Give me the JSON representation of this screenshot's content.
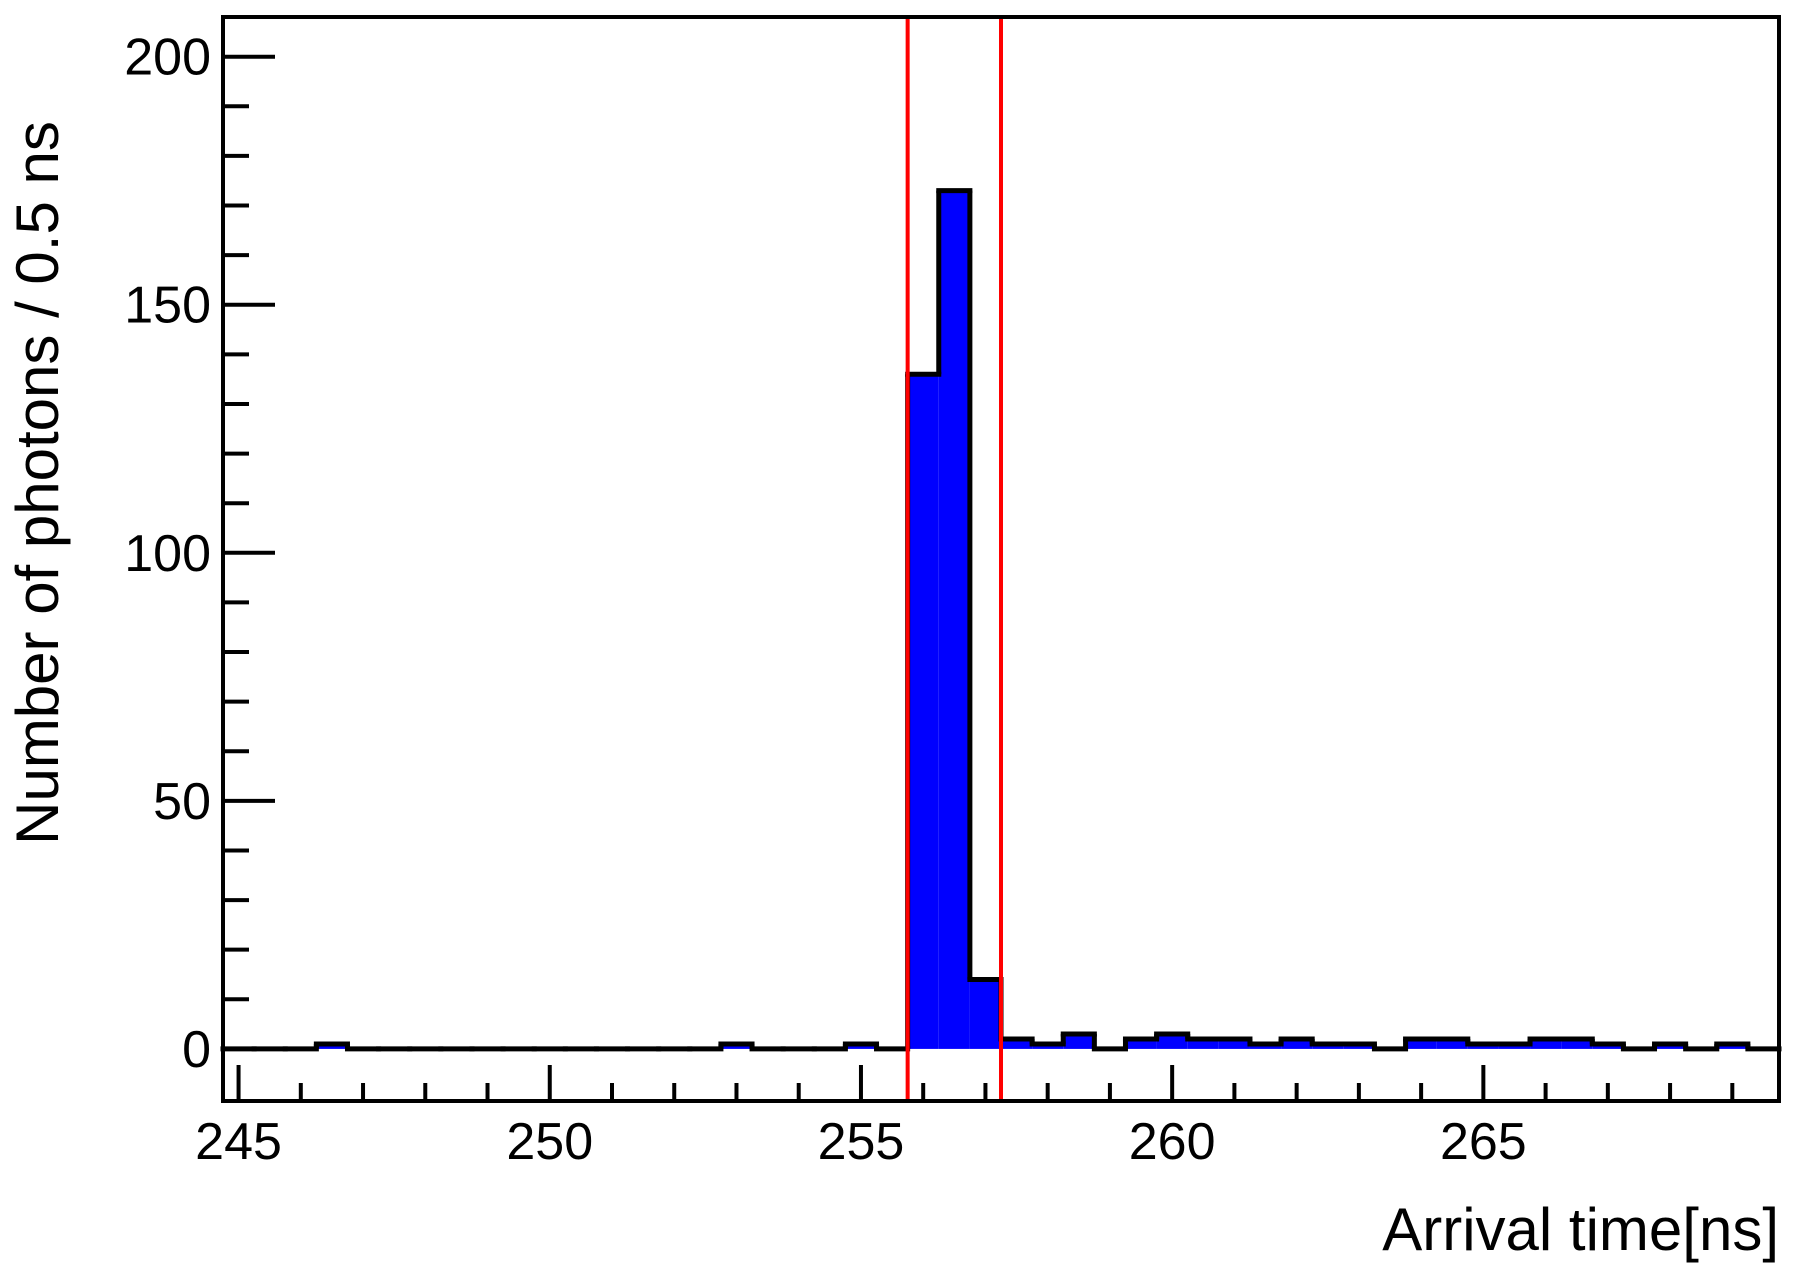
{
  "chart_data": {
    "type": "histogram",
    "x_label": "Arrival time[ns]",
    "y_label": "Number of photons / 0.5 ns",
    "bins": [
      244.75,
      245.25,
      245.75,
      246.25,
      246.75,
      247.25,
      247.75,
      248.25,
      248.75,
      249.25,
      249.75,
      250.25,
      250.75,
      251.25,
      251.75,
      252.25,
      252.75,
      253.25,
      253.75,
      254.25,
      254.75,
      255.25,
      255.75,
      256.25,
      256.75,
      257.25,
      257.75,
      258.25,
      258.75,
      259.25,
      259.75,
      260.25,
      260.75,
      261.25,
      261.75,
      262.25,
      262.75,
      263.25,
      263.75,
      264.25,
      264.75,
      265.25,
      265.75,
      266.25,
      266.75,
      267.25,
      267.75,
      268.25,
      268.75,
      269.25,
      269.75
    ],
    "values": [
      0,
      0,
      0,
      1,
      0,
      0,
      0,
      0,
      0,
      0,
      0,
      0,
      0,
      0,
      0,
      0,
      1,
      0,
      0,
      0,
      1,
      0,
      136,
      173,
      14,
      2,
      1,
      3,
      0,
      2,
      3,
      2,
      2,
      1,
      2,
      1,
      1,
      0,
      2,
      2,
      1,
      1,
      2,
      2,
      1,
      0,
      1,
      0,
      1,
      0
    ],
    "color": "#0000ff",
    "outline_color": "#000000",
    "xlim": [
      244.75,
      269.75
    ],
    "ylim": [
      -10.5,
      208
    ],
    "xticks": [
      245,
      250,
      255,
      260,
      265
    ],
    "yticks": [
      0,
      50,
      100,
      150,
      200
    ],
    "x_minor_ticks": [
      246,
      247,
      248,
      249,
      251,
      252,
      253,
      254,
      256,
      257,
      258,
      259,
      261,
      262,
      263,
      264,
      266,
      267,
      268,
      269
    ],
    "y_minor_ticks": [
      10,
      20,
      30,
      40,
      60,
      70,
      80,
      90,
      110,
      120,
      130,
      140,
      160,
      170,
      180,
      190
    ],
    "vlines": [
      {
        "x": 255.75,
        "color": "#ff0000"
      },
      {
        "x": 257.25,
        "color": "#ff0000"
      }
    ]
  }
}
